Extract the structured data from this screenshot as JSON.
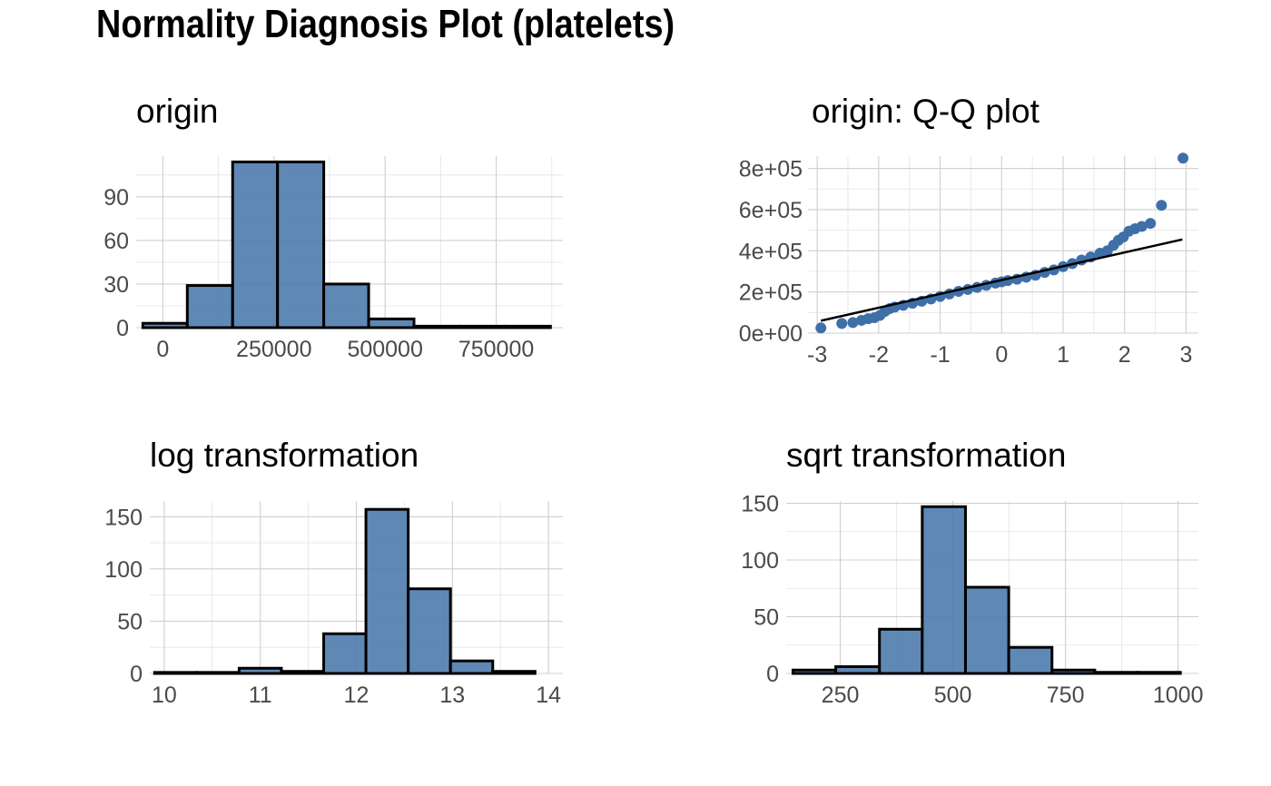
{
  "title": "Normality Diagnosis Plot (platelets)",
  "colors": {
    "bar_fill": "#4e7bad",
    "bar_outline": "#000000",
    "point": "#3f6fa8",
    "grid": "#cfcfcf"
  },
  "chart_data": [
    {
      "type": "bar",
      "title": "origin",
      "grid": true,
      "xlim": [
        -60000,
        900000
      ],
      "ylim": [
        0,
        118
      ],
      "x_ticks": [
        0,
        250000,
        500000,
        750000
      ],
      "x_tick_labels": [
        "0",
        "250000",
        "500000",
        "750000"
      ],
      "y_ticks": [
        0,
        30,
        60,
        90
      ],
      "y_tick_labels": [
        "0",
        "30",
        "60",
        "90"
      ],
      "bins": [
        {
          "x0": -45000,
          "x1": 55000,
          "count": 3
        },
        {
          "x0": 55000,
          "x1": 157000,
          "count": 29
        },
        {
          "x0": 157000,
          "x1": 258000,
          "count": 114
        },
        {
          "x0": 258000,
          "x1": 362000,
          "count": 114
        },
        {
          "x0": 362000,
          "x1": 463000,
          "count": 30
        },
        {
          "x0": 463000,
          "x1": 565000,
          "count": 6
        },
        {
          "x0": 565000,
          "x1": 667000,
          "count": 1
        },
        {
          "x0": 667000,
          "x1": 770000,
          "count": 1
        },
        {
          "x0": 770000,
          "x1": 872000,
          "count": 1
        }
      ]
    },
    {
      "type": "scatter",
      "title": "origin: Q-Q plot",
      "grid": true,
      "xlim": [
        -3.15,
        3.2
      ],
      "ylim": [
        0,
        860000
      ],
      "x_ticks": [
        -3,
        -2,
        -1,
        0,
        1,
        2,
        3
      ],
      "x_tick_labels": [
        "-3",
        "-2",
        "-1",
        "0",
        "1",
        "2",
        "3"
      ],
      "y_ticks": [
        0,
        200000,
        400000,
        600000,
        800000
      ],
      "y_tick_labels": [
        "0e+00",
        "2e+05",
        "4e+05",
        "6e+05",
        "8e+05"
      ],
      "points": [
        [
          -2.94,
          25100
        ],
        [
          -2.6,
          47000
        ],
        [
          -2.42,
          51000
        ],
        [
          -2.28,
          62000
        ],
        [
          -2.17,
          70000
        ],
        [
          -2.07,
          75000
        ],
        [
          -1.98,
          86000
        ],
        [
          -1.9,
          105000
        ],
        [
          -1.82,
          119000
        ],
        [
          -1.74,
          126000
        ],
        [
          -1.6,
          135000
        ],
        [
          -1.45,
          145000
        ],
        [
          -1.3,
          155000
        ],
        [
          -1.15,
          166000
        ],
        [
          -1.0,
          178000
        ],
        [
          -0.85,
          190000
        ],
        [
          -0.7,
          203000
        ],
        [
          -0.55,
          212000
        ],
        [
          -0.4,
          222000
        ],
        [
          -0.25,
          232000
        ],
        [
          -0.1,
          243000
        ],
        [
          0.0,
          249000
        ],
        [
          0.1,
          255000
        ],
        [
          0.25,
          262000
        ],
        [
          0.4,
          272000
        ],
        [
          0.55,
          281000
        ],
        [
          0.7,
          295000
        ],
        [
          0.85,
          307000
        ],
        [
          1.0,
          323000
        ],
        [
          1.15,
          338000
        ],
        [
          1.3,
          355000
        ],
        [
          1.45,
          370000
        ],
        [
          1.6,
          388000
        ],
        [
          1.72,
          400000
        ],
        [
          1.82,
          427000
        ],
        [
          1.9,
          451000
        ],
        [
          1.98,
          467000
        ],
        [
          2.07,
          495000
        ],
        [
          2.17,
          507000
        ],
        [
          2.28,
          518000
        ],
        [
          2.42,
          533000
        ],
        [
          2.6,
          621000
        ],
        [
          2.95,
          850000
        ]
      ],
      "reference_line": [
        [
          -2.94,
          60000
        ],
        [
          2.94,
          455000
        ]
      ]
    },
    {
      "type": "bar",
      "title": "log transformation",
      "grid": true,
      "xlim": [
        9.85,
        14.15
      ],
      "ylim": [
        0,
        165
      ],
      "x_ticks": [
        10,
        11,
        12,
        13,
        14
      ],
      "x_tick_labels": [
        "10",
        "11",
        "12",
        "13",
        "14"
      ],
      "y_ticks": [
        0,
        50,
        100,
        150
      ],
      "y_tick_labels": [
        "0",
        "50",
        "100",
        "150"
      ],
      "bins": [
        {
          "x0": 9.9,
          "x1": 10.34,
          "count": 1
        },
        {
          "x0": 10.34,
          "x1": 10.78,
          "count": 1
        },
        {
          "x0": 10.78,
          "x1": 11.22,
          "count": 5
        },
        {
          "x0": 11.22,
          "x1": 11.66,
          "count": 2
        },
        {
          "x0": 11.66,
          "x1": 12.1,
          "count": 38
        },
        {
          "x0": 12.1,
          "x1": 12.54,
          "count": 157
        },
        {
          "x0": 12.54,
          "x1": 12.98,
          "count": 81
        },
        {
          "x0": 12.98,
          "x1": 13.42,
          "count": 12
        },
        {
          "x0": 13.42,
          "x1": 13.86,
          "count": 2
        }
      ]
    },
    {
      "type": "bar",
      "title": "sqrt transformation",
      "grid": true,
      "xlim": [
        130,
        1045
      ],
      "ylim": [
        0,
        152
      ],
      "x_ticks": [
        250,
        500,
        750,
        1000
      ],
      "x_tick_labels": [
        "250",
        "500",
        "750",
        "1000"
      ],
      "y_ticks": [
        0,
        50,
        100,
        150
      ],
      "y_tick_labels": [
        "0",
        "50",
        "100",
        "150"
      ],
      "bins": [
        {
          "x0": 145,
          "x1": 240,
          "count": 3
        },
        {
          "x0": 240,
          "x1": 337,
          "count": 6
        },
        {
          "x0": 337,
          "x1": 432,
          "count": 39
        },
        {
          "x0": 432,
          "x1": 528,
          "count": 147
        },
        {
          "x0": 528,
          "x1": 624,
          "count": 76
        },
        {
          "x0": 624,
          "x1": 720,
          "count": 23
        },
        {
          "x0": 720,
          "x1": 815,
          "count": 3
        },
        {
          "x0": 815,
          "x1": 910,
          "count": 1
        },
        {
          "x0": 910,
          "x1": 1005,
          "count": 1
        }
      ]
    }
  ]
}
